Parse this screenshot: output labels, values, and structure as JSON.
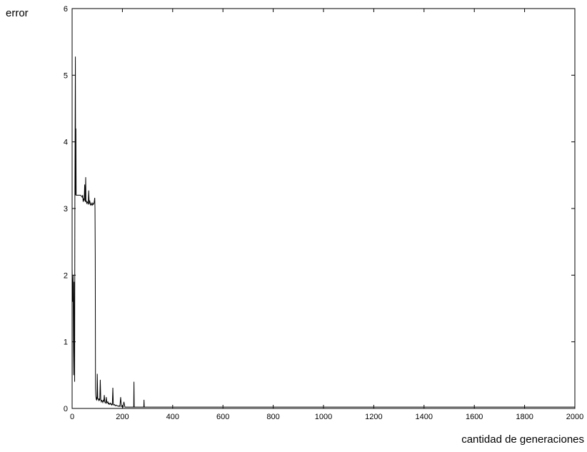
{
  "chart_data": {
    "type": "line",
    "title": "",
    "xlabel": "cantidad de generaciones",
    "ylabel": "error",
    "xlim": [
      0,
      2000
    ],
    "ylim": [
      0,
      6
    ],
    "grid": false,
    "legend": "none",
    "x_ticks": [
      0,
      200,
      400,
      600,
      800,
      1000,
      1200,
      1400,
      1600,
      1800,
      2000
    ],
    "y_ticks": [
      0,
      1,
      2,
      3,
      4,
      5,
      6
    ],
    "colors": {
      "line": "#000000",
      "axes": "#000000",
      "background": "#ffffff"
    },
    "series": [
      {
        "x": [
          0,
          2,
          4,
          6,
          8,
          10,
          11,
          13,
          14,
          15,
          16,
          17,
          18,
          19,
          20,
          21,
          22,
          24,
          26,
          28,
          30,
          33,
          36,
          38,
          40,
          42,
          44,
          46,
          48,
          50,
          52,
          54,
          55,
          56,
          58,
          60,
          62,
          64,
          66,
          68,
          70,
          72,
          74,
          76,
          78,
          80,
          82,
          84,
          86,
          88,
          90,
          91,
          92,
          93,
          94,
          95,
          96,
          97,
          98,
          99,
          100,
          102,
          104,
          106,
          108,
          110,
          112,
          114,
          116,
          118,
          120,
          122,
          124,
          126,
          128,
          130,
          132,
          134,
          136,
          138,
          140,
          142,
          144,
          146,
          148,
          150,
          152,
          154,
          156,
          158,
          160,
          162,
          164,
          166,
          168,
          170,
          172,
          175,
          178,
          181,
          184,
          187,
          190,
          193,
          196,
          198,
          200,
          203,
          206,
          210,
          215,
          220,
          225,
          230,
          240,
          245,
          246,
          247,
          250,
          260,
          270,
          280,
          285,
          286,
          287,
          290,
          300,
          400,
          600,
          800,
          1000,
          1200,
          1400,
          1600,
          1800,
          2000
        ],
        "y": [
          2.1,
          1.6,
          2.0,
          0.5,
          1.9,
          0.4,
          3.2,
          5.28,
          3.2,
          4.2,
          3.2,
          3.2,
          3.2,
          3.2,
          3.2,
          3.2,
          3.2,
          3.2,
          3.2,
          3.2,
          3.2,
          3.2,
          3.19,
          3.18,
          3.17,
          3.2,
          3.1,
          3.15,
          3.12,
          3.36,
          3.1,
          3.47,
          3.1,
          3.12,
          3.08,
          3.1,
          3.09,
          3.06,
          3.27,
          3.07,
          3.12,
          3.06,
          3.05,
          3.08,
          3.06,
          3.05,
          3.08,
          3.06,
          3.07,
          3.1,
          3.16,
          3.0,
          2.3,
          0.3,
          0.2,
          0.16,
          0.14,
          0.15,
          0.13,
          0.14,
          0.52,
          0.15,
          0.14,
          0.12,
          0.15,
          0.12,
          0.43,
          0.13,
          0.1,
          0.12,
          0.11,
          0.09,
          0.12,
          0.11,
          0.2,
          0.1,
          0.08,
          0.09,
          0.17,
          0.08,
          0.09,
          0.1,
          0.07,
          0.08,
          0.06,
          0.07,
          0.08,
          0.06,
          0.07,
          0.05,
          0.06,
          0.31,
          0.06,
          0.05,
          0.06,
          0.05,
          0.04,
          0.05,
          0.04,
          0.04,
          0.03,
          0.04,
          0.03,
          0.17,
          0.03,
          0.03,
          0.03,
          0.02,
          0.1,
          0.02,
          0.02,
          0.02,
          0.02,
          0.02,
          0.02,
          0.02,
          0.4,
          0.02,
          0.02,
          0.02,
          0.02,
          0.02,
          0.02,
          0.13,
          0.02,
          0.02,
          0.02,
          0.02,
          0.02,
          0.02,
          0.02,
          0.02,
          0.02,
          0.02,
          0.02,
          0.02
        ]
      }
    ]
  }
}
